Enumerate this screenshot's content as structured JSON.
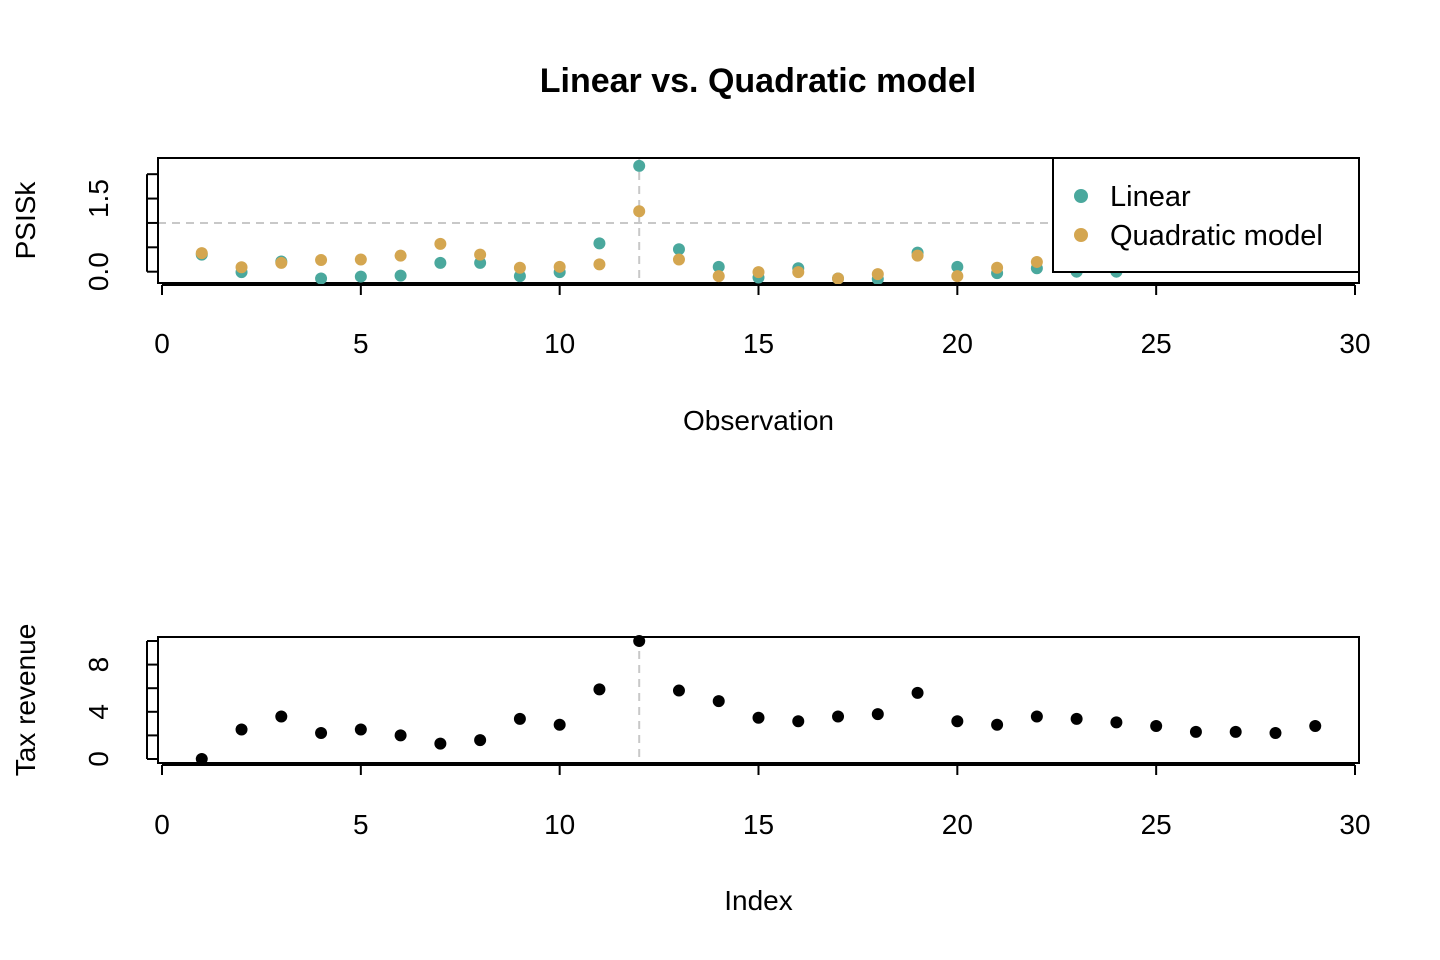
{
  "chart_data": [
    {
      "type": "scatter",
      "title": "Linear vs. Quadratic model",
      "xlabel": "Observation",
      "ylabel": "PSISk",
      "xlim": [
        0,
        30
      ],
      "ylim": [
        -0.15,
        2.25
      ],
      "xticks": [
        0,
        5,
        10,
        15,
        20,
        25,
        30
      ],
      "xtick_labels": [
        "0",
        "5",
        "10",
        "15",
        "20",
        "25",
        "30"
      ],
      "yticks": [
        0.0,
        0.5,
        1.0,
        1.5,
        2.0
      ],
      "ytick_labels": [
        "0.0",
        "1.5"
      ],
      "hline": 1.0,
      "vline": 12,
      "legend": "top-right",
      "series": [
        {
          "name": "Linear",
          "color": "#4aa89d",
          "x": [
            1,
            2,
            3,
            4,
            5,
            6,
            7,
            8,
            9,
            10,
            11,
            12,
            13,
            14,
            15,
            16,
            17,
            18,
            19,
            20,
            21,
            22,
            23,
            24
          ],
          "y": [
            0.35,
            -0.01,
            0.21,
            -0.14,
            -0.1,
            -0.08,
            0.18,
            0.18,
            -0.09,
            -0.01,
            0.58,
            2.17,
            0.46,
            0.1,
            -0.12,
            0.07,
            -0.14,
            -0.15,
            0.39,
            0.1,
            -0.03,
            0.07,
            0.0,
            0.0
          ]
        },
        {
          "name": "Quadratic model",
          "color": "#d4a650",
          "x": [
            1,
            2,
            3,
            4,
            5,
            6,
            7,
            8,
            9,
            10,
            11,
            12,
            13,
            14,
            15,
            16,
            17,
            18,
            19,
            20,
            21,
            22
          ],
          "y": [
            0.38,
            0.09,
            0.18,
            0.24,
            0.25,
            0.33,
            0.57,
            0.35,
            0.08,
            0.1,
            0.15,
            1.24,
            0.25,
            -0.09,
            -0.01,
            -0.01,
            -0.14,
            -0.05,
            0.33,
            -0.09,
            0.08,
            0.2
          ]
        }
      ]
    },
    {
      "type": "scatter",
      "xlabel": "Index",
      "ylabel": "Tax revenue",
      "xlim": [
        0,
        30
      ],
      "ylim": [
        0,
        10
      ],
      "xticks": [
        0,
        5,
        10,
        15,
        20,
        25,
        30
      ],
      "xtick_labels": [
        "0",
        "5",
        "10",
        "15",
        "20",
        "25",
        "30"
      ],
      "yticks": [
        0,
        2,
        4,
        6,
        8,
        10
      ],
      "ytick_labels": [
        "0",
        "4",
        "8"
      ],
      "vline": 12,
      "series": [
        {
          "color": "#000000",
          "x": [
            1,
            2,
            3,
            4,
            5,
            6,
            7,
            8,
            9,
            10,
            11,
            12,
            13,
            14,
            15,
            16,
            17,
            18,
            19,
            20,
            21,
            22,
            23,
            24,
            25,
            26,
            27,
            28,
            29
          ],
          "y": [
            0.0,
            2.5,
            3.6,
            2.2,
            2.5,
            2.0,
            1.3,
            1.6,
            3.4,
            2.9,
            5.9,
            10.0,
            5.8,
            4.9,
            3.5,
            3.2,
            3.6,
            3.8,
            5.6,
            3.2,
            2.9,
            3.6,
            3.4,
            3.1,
            2.8,
            2.3,
            2.3,
            2.2,
            2.8
          ]
        }
      ]
    }
  ]
}
